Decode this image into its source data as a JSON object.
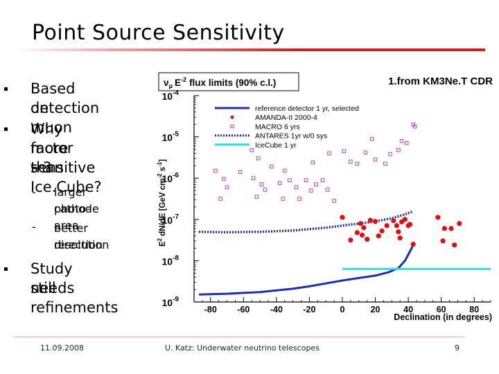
{
  "slide": {
    "title": "Point Source Sensitivity",
    "bullets": [
      {
        "text_lines": [
          "Based on muon",
          "detection"
        ]
      },
      {
        "text_lines": [
          "Why factor ~3",
          "more sensitive",
          "than Ice.Cube?"
        ],
        "sub": [
          {
            "text_lines": [
              "larger photo-",
              "cathode area"
            ]
          },
          {
            "text_lines": [
              "better direction",
              "resolution"
            ]
          }
        ]
      },
      {
        "text_lines": [
          "Study still",
          "needs",
          "refinements"
        ]
      }
    ],
    "footer": {
      "date": "11.09.2008",
      "center": "U. Katz: Underwater neutrino telescopes",
      "page": "9"
    }
  },
  "colors": {
    "accent": "#cc2020",
    "reference": "#1a2cc0",
    "amanda": "#e01010",
    "macro": "#c23ec2",
    "antares": "#1a2cc0",
    "icecube": "#22e0f0"
  },
  "chart_data": {
    "type": "scatter",
    "title": "ν_μ E⁻² flux limits (90% c.l.)",
    "title_parts": {
      "nu": "ν",
      "mu": "μ",
      "E": "E",
      "exp": "-2",
      "rest": "flux limits (90% c.l.)"
    },
    "source_note": "1.from KM3Ne.T CDR",
    "xlabel": "Declination (in degrees)",
    "ylabel": "E² dN/dE [GeV cm⁻² s⁻¹]",
    "ylabel_parts": {
      "a": "E",
      "sq": "2",
      "b": " dN/dE [GeV cm",
      "exp1": "-2",
      "c": " s",
      "exp2": "-1",
      "d": "]"
    },
    "xlim": [
      -90,
      90
    ],
    "ylog": true,
    "ylim_log10": [
      -9,
      -4
    ],
    "xticks": [
      -80,
      -60,
      -40,
      -20,
      0,
      20,
      40,
      60,
      80
    ],
    "yticks": [
      {
        "base": "10",
        "exp": "-4",
        "log10": -4
      },
      {
        "base": "10",
        "exp": "-5",
        "log10": -5
      },
      {
        "base": "10",
        "exp": "-6",
        "log10": -6
      },
      {
        "base": "10",
        "exp": "-7",
        "log10": -7
      },
      {
        "base": "10",
        "exp": "-8",
        "log10": -8
      },
      {
        "base": "10",
        "exp": "-9",
        "log10": -9
      }
    ],
    "legend": [
      "reference detector 1 yr, selected",
      "AMANDA-II 2000-4",
      "MACRO 6 yrs",
      "ANTARES 1yr w/0 sys",
      "IceCube 1 yr"
    ],
    "series": [
      {
        "name": "reference detector 1 yr, selected",
        "style": "solid-line",
        "points": [
          [
            -87,
            -8.82
          ],
          [
            -80,
            -8.81
          ],
          [
            -70,
            -8.8
          ],
          [
            -60,
            -8.78
          ],
          [
            -50,
            -8.76
          ],
          [
            -40,
            -8.72
          ],
          [
            -30,
            -8.68
          ],
          [
            -20,
            -8.62
          ],
          [
            -10,
            -8.55
          ],
          [
            0,
            -8.48
          ],
          [
            10,
            -8.42
          ],
          [
            20,
            -8.36
          ],
          [
            28,
            -8.28
          ],
          [
            34,
            -8.18
          ],
          [
            38,
            -8.0
          ],
          [
            40,
            -7.85
          ],
          [
            42,
            -7.7
          ],
          [
            43,
            -7.6
          ]
        ]
      },
      {
        "name": "ANTARES 1yr w/0 sys",
        "style": "dotted-line",
        "points": [
          [
            -87,
            -7.3
          ],
          [
            -70,
            -7.31
          ],
          [
            -50,
            -7.3
          ],
          [
            -30,
            -7.27
          ],
          [
            -10,
            -7.2
          ],
          [
            0,
            -7.15
          ],
          [
            10,
            -7.1
          ],
          [
            20,
            -7.05
          ],
          [
            30,
            -6.97
          ],
          [
            38,
            -6.88
          ],
          [
            43,
            -6.8
          ]
        ]
      },
      {
        "name": "IceCube 1 yr",
        "style": "solid-line",
        "points": [
          [
            0,
            -8.2
          ],
          [
            90,
            -8.2
          ]
        ]
      },
      {
        "name": "AMANDA-II 2000-4",
        "style": "dots",
        "points": [
          [
            0,
            -6.95
          ],
          [
            5,
            -7.5
          ],
          [
            9,
            -7.32
          ],
          [
            11,
            -7.1
          ],
          [
            12,
            -7.38
          ],
          [
            13,
            -7.2
          ],
          [
            15,
            -7.48
          ],
          [
            17,
            -7.02
          ],
          [
            20,
            -7.05
          ],
          [
            22,
            -7.4
          ],
          [
            24,
            -7.28
          ],
          [
            27,
            -7.15
          ],
          [
            31,
            -7.03
          ],
          [
            33,
            -7.15
          ],
          [
            34,
            -7.3
          ],
          [
            35,
            -7.45
          ],
          [
            36,
            -7.06
          ],
          [
            38,
            -7.0
          ],
          [
            40,
            -7.15
          ],
          [
            41,
            -7.12
          ],
          [
            43,
            -7.6
          ],
          [
            58,
            -6.95
          ],
          [
            61,
            -7.52
          ],
          [
            62,
            -7.22
          ],
          [
            66,
            -7.22
          ],
          [
            68,
            -7.62
          ],
          [
            71,
            -7.1
          ]
        ]
      },
      {
        "name": "MACRO 6 yrs",
        "style": "open-squares",
        "points": [
          [
            -77,
            -5.82
          ],
          [
            -74,
            -6.5
          ],
          [
            -72,
            -6.02
          ],
          [
            -70,
            -6.22
          ],
          [
            -62,
            -5.85
          ],
          [
            -55,
            -5.32
          ],
          [
            -54,
            -6.0
          ],
          [
            -52,
            -6.45
          ],
          [
            -51,
            -5.52
          ],
          [
            -49,
            -6.15
          ],
          [
            -47,
            -6.28
          ],
          [
            -43,
            -5.72
          ],
          [
            -38,
            -6.12
          ],
          [
            -36,
            -6.5
          ],
          [
            -35,
            -5.82
          ],
          [
            -32,
            -6.05
          ],
          [
            -28,
            -6.22
          ],
          [
            -26,
            -6.5
          ],
          [
            -22,
            -6.05
          ],
          [
            -19,
            -6.3
          ],
          [
            -18,
            -5.62
          ],
          [
            -16,
            -6.15
          ],
          [
            -12,
            -6.05
          ],
          [
            -9,
            -6.28
          ],
          [
            -8,
            -5.4
          ],
          [
            -5,
            -6.55
          ],
          [
            1,
            -5.35
          ],
          [
            5,
            -5.6
          ],
          [
            9,
            -5.65
          ],
          [
            14,
            -5.38
          ],
          [
            18,
            -5.05
          ],
          [
            20,
            -5.55
          ],
          [
            26,
            -5.65
          ],
          [
            29,
            -5.42
          ],
          [
            34,
            -5.32
          ],
          [
            36,
            -5.1
          ],
          [
            39,
            -5.15
          ],
          [
            43,
            -4.7
          ],
          [
            44,
            -4.75
          ]
        ]
      }
    ]
  }
}
